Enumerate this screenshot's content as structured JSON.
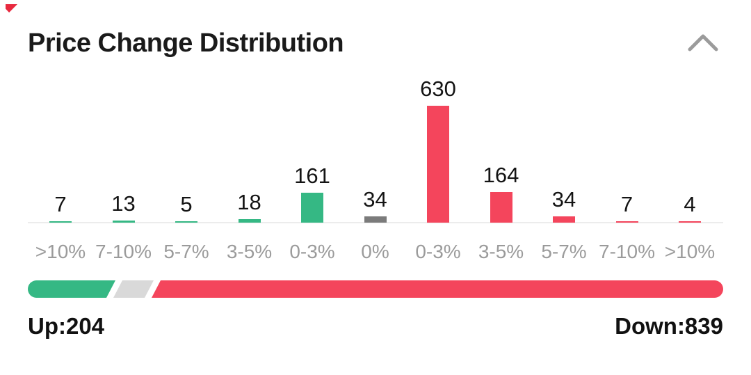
{
  "header": {
    "title": "Price Change Distribution",
    "collapse_icon": "chevron-up",
    "corner_mark_color": "#e8293f"
  },
  "chart_data": {
    "type": "bar",
    "title": "Price Change Distribution",
    "categories": [
      ">10%",
      "7-10%",
      "5-7%",
      "3-5%",
      "0-3%",
      "0%",
      "0-3%",
      "3-5%",
      "5-7%",
      "7-10%",
      ">10%"
    ],
    "values": [
      7,
      13,
      5,
      18,
      161,
      34,
      630,
      164,
      34,
      7,
      4
    ],
    "groups": [
      "up",
      "up",
      "up",
      "up",
      "up",
      "flat",
      "down",
      "down",
      "down",
      "down",
      "down"
    ],
    "colors": {
      "up": "#35b884",
      "flat": "#7b7b7b",
      "down": "#f4455c"
    },
    "value_labels": true,
    "grid": false,
    "ylim": [
      0,
      680
    ],
    "xlabel": "",
    "ylabel": ""
  },
  "gauge": {
    "segments": [
      {
        "name": "up",
        "color": "#35b884"
      },
      {
        "name": "flat",
        "color": "#d9d9d9"
      },
      {
        "name": "down",
        "color": "#f4455c"
      }
    ]
  },
  "summary": {
    "up_label": "Up:204",
    "down_label": "Down:839"
  }
}
